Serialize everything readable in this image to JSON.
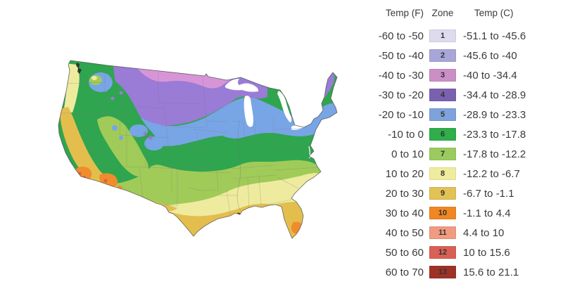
{
  "page": {
    "background": "#ffffff"
  },
  "legend": {
    "headers": {
      "temp_f": "Temp (F)",
      "zone": "Zone",
      "temp_c": "Temp (C)"
    },
    "rows": [
      {
        "temp_f": "-60 to -50",
        "zone": "1",
        "temp_c": "-51.1 to -45.6",
        "swatch": "#dfdbee"
      },
      {
        "temp_f": "-50 to -40",
        "zone": "2",
        "temp_c": "-45.6 to -40",
        "swatch": "#a8a6d9"
      },
      {
        "temp_f": "-40 to -30",
        "zone": "3",
        "temp_c": "-40 to -34.4",
        "swatch": "#cb8ec5"
      },
      {
        "temp_f": "-30 to -20",
        "zone": "4",
        "temp_c": "-34.4 to -28.9",
        "swatch": "#7a61b0"
      },
      {
        "temp_f": "-20 to -10",
        "zone": "5",
        "temp_c": "-28.9 to -23.3",
        "swatch": "#7ea3da"
      },
      {
        "temp_f": "-10 to 0",
        "zone": "6",
        "temp_c": "-23.3 to -17.8",
        "swatch": "#2fae49"
      },
      {
        "temp_f": "0 to 10",
        "zone": "7",
        "temp_c": "-17.8 to -12.2",
        "swatch": "#9bcb5e"
      },
      {
        "temp_f": "10 to 20",
        "zone": "8",
        "temp_c": "-12.2 to -6.7",
        "swatch": "#f0ec9d"
      },
      {
        "temp_f": "20 to 30",
        "zone": "9",
        "temp_c": "-6.7 to -1.1",
        "swatch": "#e2c254"
      },
      {
        "temp_f": "30 to 40",
        "zone": "10",
        "temp_c": "-1.1 to 4.4",
        "swatch": "#f08722"
      },
      {
        "temp_f": "40 to 50",
        "zone": "11",
        "temp_c": "4.4 to 10",
        "swatch": "#f19c80"
      },
      {
        "temp_f": "50 to 60",
        "zone": "12",
        "temp_c": "10 to 15.6",
        "swatch": "#d96055"
      },
      {
        "temp_f": "60 to 70",
        "zone": "13",
        "temp_c": "15.6 to 21.1",
        "swatch": "#9e3226"
      }
    ]
  },
  "map": {
    "colors": {
      "zone3": "#d795d8",
      "zone4": "#9a7bd6",
      "zone5": "#78a5e6",
      "zone6": "#2fa54f",
      "zone7": "#a0cb58",
      "zone8": "#eeeb9f",
      "zone9": "#e4be4d",
      "zone10": "#f18c2b",
      "zone11": "#df5f44",
      "water": "#ffffff",
      "state_border": "#7a7a7a",
      "coast_outline": "#4f4f4f",
      "coast_accent": "#222222"
    }
  }
}
